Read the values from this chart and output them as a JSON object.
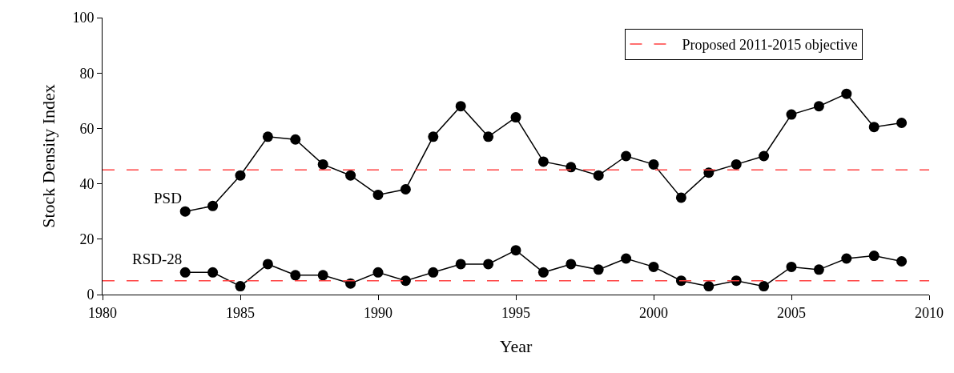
{
  "chart_data": {
    "type": "line",
    "xlabel": "Year",
    "ylabel": "Stock Density Index",
    "x": [
      1983,
      1984,
      1985,
      1986,
      1987,
      1988,
      1989,
      1990,
      1991,
      1992,
      1993,
      1994,
      1995,
      1996,
      1997,
      1998,
      1999,
      2000,
      2001,
      2002,
      2003,
      2004,
      2005,
      2006,
      2007,
      2008,
      2009
    ],
    "series": [
      {
        "name": "PSD",
        "color": "#000000",
        "values": [
          30,
          32,
          43,
          57,
          56,
          47,
          43,
          36,
          38,
          57,
          68,
          57,
          64,
          48,
          46,
          43,
          50,
          47,
          35,
          44,
          47,
          50,
          65,
          68,
          72.5,
          60.5,
          62
        ]
      },
      {
        "name": "RSD-28",
        "color": "#000000",
        "values": [
          8,
          8,
          3,
          11,
          7,
          7,
          4,
          8,
          5,
          8,
          11,
          11,
          16,
          8,
          11,
          9,
          13,
          10,
          5,
          3,
          5,
          3,
          10,
          9,
          13,
          14,
          12
        ]
      }
    ],
    "xlim": [
      1980,
      2010
    ],
    "xticks": [
      1980,
      1985,
      1990,
      1995,
      2000,
      2005,
      2010
    ],
    "ylim": [
      0,
      100
    ],
    "yticks": [
      0,
      20,
      40,
      60,
      80,
      100
    ],
    "ref_lines": [
      {
        "axis": "y",
        "value": 45,
        "label": "Proposed 2011-2015 objective",
        "color": "#ff4040",
        "line_style": "dashed"
      },
      {
        "axis": "y",
        "value": 5,
        "color": "#ff4040",
        "line_style": "dashed"
      }
    ],
    "marker": "circle",
    "line_style": "solid",
    "legend": "top right"
  }
}
